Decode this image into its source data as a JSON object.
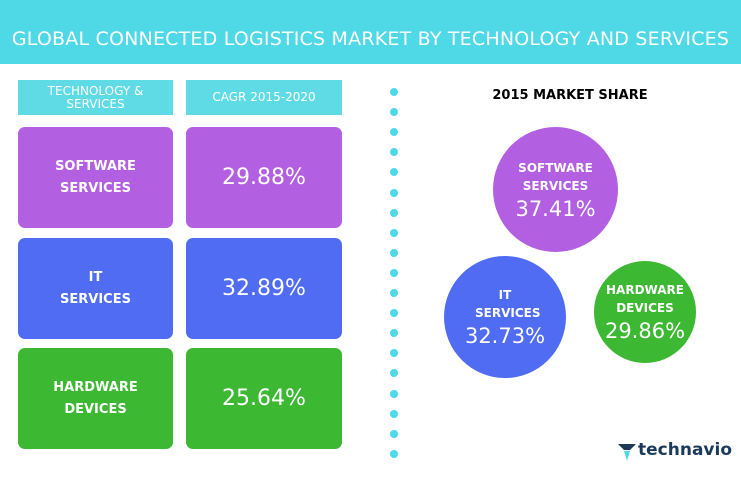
{
  "header": {
    "title": "GLOBAL CONNECTED LOGISTICS MARKET BY TECHNOLOGY AND SERVICES"
  },
  "table": {
    "headers": [
      "TECHNOLOGY & SERVICES",
      "CAGR 2015-2020"
    ],
    "rows": [
      [
        "SOFTWARE SERVICES",
        "29.88%"
      ],
      [
        "IT SERVICES",
        "32.89%"
      ],
      [
        "HARDWARE DEVICES",
        "25.64%"
      ]
    ]
  },
  "market_share": {
    "title": "2015 MARKET SHARE",
    "items": [
      {
        "label": "SOFTWARE SERVICES",
        "value": "37.41%"
      },
      {
        "label": "IT SERVICES",
        "value": "32.73%"
      },
      {
        "label": "HARDWARE DEVICES",
        "value": "29.86%"
      }
    ]
  },
  "logo": "technavio"
}
